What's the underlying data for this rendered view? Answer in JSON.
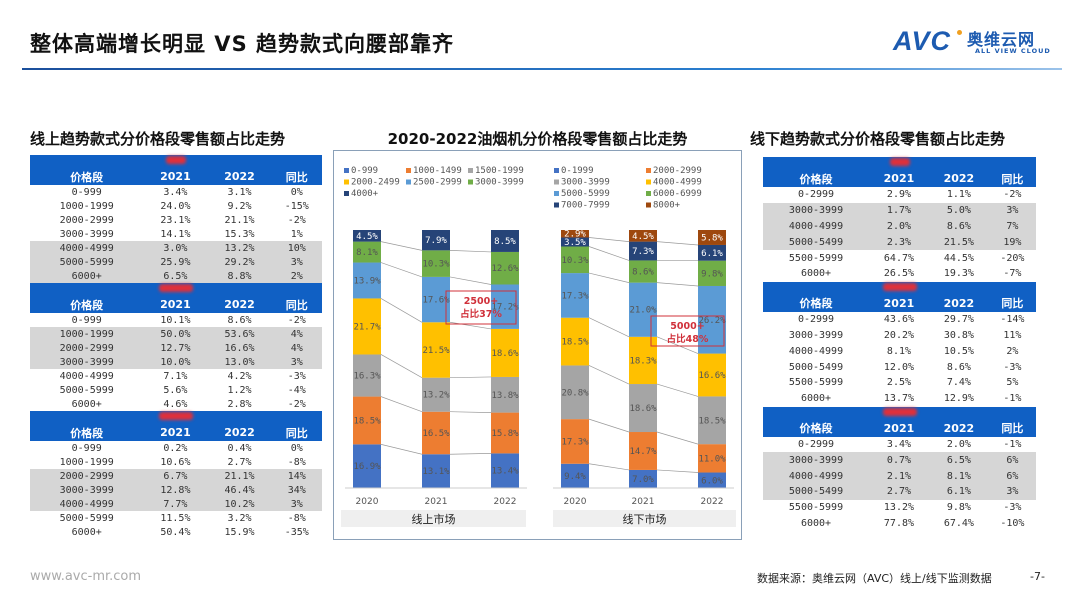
{
  "header": {
    "title": "整体高端增长明显 VS 趋势款式向腰部靠齐",
    "logo": {
      "mark": "AVC",
      "cn": "奥维云网",
      "en": "ALL VIEW CLOUD",
      "color": "#1d5bb0"
    }
  },
  "left_table": {
    "title": "线上趋势款式分价格段零售额占比走势",
    "headers": [
      "价格段",
      "2021",
      "2022",
      "同比"
    ],
    "sections": [
      {
        "highlight_rows": [
          4,
          5,
          6
        ],
        "rows": [
          [
            "0-999",
            "3.4%",
            "3.1%",
            "0%"
          ],
          [
            "1000-1999",
            "24.0%",
            "9.2%",
            "-15%"
          ],
          [
            "2000-2999",
            "23.1%",
            "21.1%",
            "-2%"
          ],
          [
            "3000-3999",
            "14.1%",
            "15.3%",
            "1%"
          ],
          [
            "4000-4999",
            "3.0%",
            "13.2%",
            "10%"
          ],
          [
            "5000-5999",
            "25.9%",
            "29.2%",
            "3%"
          ],
          [
            "6000+",
            "6.5%",
            "8.8%",
            "2%"
          ]
        ]
      },
      {
        "highlight_rows": [
          1,
          2,
          3
        ],
        "rows": [
          [
            "0-999",
            "10.1%",
            "8.6%",
            "-2%"
          ],
          [
            "1000-1999",
            "50.0%",
            "53.6%",
            "4%"
          ],
          [
            "2000-2999",
            "12.7%",
            "16.6%",
            "4%"
          ],
          [
            "3000-3999",
            "10.0%",
            "13.0%",
            "3%"
          ],
          [
            "4000-4999",
            "7.1%",
            "4.2%",
            "-3%"
          ],
          [
            "5000-5999",
            "5.6%",
            "1.2%",
            "-4%"
          ],
          [
            "6000+",
            "4.6%",
            "2.8%",
            "-2%"
          ]
        ]
      },
      {
        "highlight_rows": [
          2,
          3,
          4
        ],
        "rows": [
          [
            "0-999",
            "0.2%",
            "0.4%",
            "0%"
          ],
          [
            "1000-1999",
            "10.6%",
            "2.7%",
            "-8%"
          ],
          [
            "2000-2999",
            "6.7%",
            "21.1%",
            "14%"
          ],
          [
            "3000-3999",
            "12.8%",
            "46.4%",
            "34%"
          ],
          [
            "4000-4999",
            "7.7%",
            "10.2%",
            "3%"
          ],
          [
            "5000-5999",
            "11.5%",
            "3.2%",
            "-8%"
          ],
          [
            "6000+",
            "50.4%",
            "15.9%",
            "-35%"
          ]
        ]
      }
    ]
  },
  "right_table": {
    "title": "线下趋势款式分价格段零售额占比走势",
    "headers": [
      "价格段",
      "2021",
      "2022",
      "同比"
    ],
    "sections": [
      {
        "highlight_rows": [
          1,
          2,
          3
        ],
        "rows": [
          [
            "0-2999",
            "2.9%",
            "1.1%",
            "-2%"
          ],
          [
            "3000-3999",
            "1.7%",
            "5.0%",
            "3%"
          ],
          [
            "4000-4999",
            "2.0%",
            "8.6%",
            "7%"
          ],
          [
            "5000-5499",
            "2.3%",
            "21.5%",
            "19%"
          ],
          [
            "5500-5999",
            "64.7%",
            "44.5%",
            "-20%"
          ],
          [
            "6000+",
            "26.5%",
            "19.3%",
            "-7%"
          ]
        ]
      },
      {
        "highlight_rows": [],
        "rows": [
          [
            "0-2999",
            "43.6%",
            "29.7%",
            "-14%"
          ],
          [
            "3000-3999",
            "20.2%",
            "30.8%",
            "11%"
          ],
          [
            "4000-4999",
            "8.1%",
            "10.5%",
            "2%"
          ],
          [
            "5000-5499",
            "12.0%",
            "8.6%",
            "-3%"
          ],
          [
            "5500-5999",
            "2.5%",
            "7.4%",
            "5%"
          ],
          [
            "6000+",
            "13.7%",
            "12.9%",
            "-1%"
          ]
        ]
      },
      {
        "highlight_rows": [
          1,
          2,
          3
        ],
        "rows": [
          [
            "0-2999",
            "3.4%",
            "2.0%",
            "-1%"
          ],
          [
            "3000-3999",
            "0.7%",
            "6.5%",
            "6%"
          ],
          [
            "4000-4999",
            "2.1%",
            "8.1%",
            "6%"
          ],
          [
            "5000-5499",
            "2.7%",
            "6.1%",
            "3%"
          ],
          [
            "5500-5999",
            "13.2%",
            "9.8%",
            "-3%"
          ],
          [
            "6000+",
            "77.8%",
            "67.4%",
            "-10%"
          ]
        ]
      }
    ]
  },
  "chart": {
    "title": "2020-2022油烟机分价格段零售额占比走势"
  },
  "chart_data": [
    {
      "type": "bar",
      "stacked": true,
      "percent": true,
      "xlabel": "线上市场",
      "categories": [
        "2020",
        "2021",
        "2022"
      ],
      "legend_position": "top",
      "series": [
        {
          "name": "0-999",
          "color": "#4472c4",
          "values": [
            16.9,
            13.1,
            13.4
          ]
        },
        {
          "name": "1000-1499",
          "color": "#ed7d31",
          "values": [
            18.5,
            16.5,
            15.8
          ]
        },
        {
          "name": "1500-1999",
          "color": "#a5a5a5",
          "values": [
            16.3,
            13.2,
            13.8
          ]
        },
        {
          "name": "2000-2499",
          "color": "#ffc000",
          "values": [
            21.7,
            21.5,
            18.6
          ]
        },
        {
          "name": "2500-2999",
          "color": "#5b9bd5",
          "values": [
            13.9,
            17.6,
            17.2
          ]
        },
        {
          "name": "3000-3999",
          "color": "#70ad47",
          "values": [
            8.1,
            10.3,
            12.6
          ]
        },
        {
          "name": "4000+",
          "color": "#264478",
          "values": [
            4.5,
            7.9,
            8.5
          ]
        }
      ],
      "annotation": {
        "line1": "2500+",
        "line2": "占比37%"
      }
    },
    {
      "type": "bar",
      "stacked": true,
      "percent": true,
      "xlabel": "线下市场",
      "categories": [
        "2020",
        "2021",
        "2022"
      ],
      "legend_position": "top",
      "series": [
        {
          "name": "0-1999",
          "color": "#4472c4",
          "values": [
            9.4,
            7.0,
            6.0
          ]
        },
        {
          "name": "2000-2999",
          "color": "#ed7d31",
          "values": [
            17.3,
            14.7,
            11.0
          ]
        },
        {
          "name": "3000-3999",
          "color": "#a5a5a5",
          "values": [
            20.8,
            18.6,
            18.5
          ]
        },
        {
          "name": "4000-4999",
          "color": "#ffc000",
          "values": [
            18.5,
            18.3,
            16.6
          ]
        },
        {
          "name": "5000-5999",
          "color": "#5b9bd5",
          "values": [
            17.3,
            21.0,
            26.2
          ]
        },
        {
          "name": "6000-6999",
          "color": "#70ad47",
          "values": [
            10.3,
            8.6,
            9.8
          ]
        },
        {
          "name": "7000-7999",
          "color": "#264478",
          "values": [
            3.5,
            7.3,
            6.1
          ]
        },
        {
          "name": "8000+",
          "color": "#9e480e",
          "values": [
            2.9,
            4.5,
            5.8
          ]
        }
      ],
      "annotation": {
        "line1": "5000+",
        "line2": "占比48%"
      }
    }
  ],
  "footer": {
    "url": "www.avc-mr.com",
    "source": "数据来源：奥维云网（AVC）线上/线下监测数据",
    "page": "-7-"
  }
}
